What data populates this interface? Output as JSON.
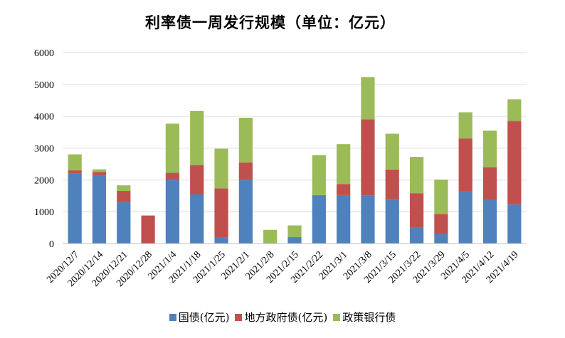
{
  "chart_data": {
    "type": "bar",
    "stacked": true,
    "title": "利率债一周发行规模（单位：亿元）",
    "xlabel": "",
    "ylabel": "",
    "ylim": [
      0,
      6000
    ],
    "yticks": [
      0,
      1000,
      2000,
      3000,
      4000,
      5000,
      6000
    ],
    "grid": true,
    "legend_position": "bottom",
    "categories": [
      "2020/12/7",
      "2020/12/14",
      "2020/12/21",
      "2020/12/28",
      "2021/1/4",
      "2021/1/18",
      "2021/1/25",
      "2021/2/1",
      "2021/2/8",
      "2021/2/15",
      "2021/2/22",
      "2021/3/1",
      "2021/3/8",
      "2021/3/15",
      "2021/3/22",
      "2021/3/29",
      "2021/4/5",
      "2021/4/12",
      "2021/4/19"
    ],
    "series": [
      {
        "name": "国债(亿元)",
        "color": "#4F81BD",
        "values": [
          2200,
          2150,
          1300,
          0,
          2000,
          1550,
          200,
          2000,
          0,
          200,
          1520,
          1520,
          1500,
          1390,
          500,
          300,
          1650,
          1370,
          1230
        ]
      },
      {
        "name": "地方政府债(亿元)",
        "color": "#C0504D",
        "values": [
          100,
          100,
          350,
          880,
          220,
          920,
          1530,
          550,
          0,
          0,
          0,
          350,
          2400,
          930,
          1080,
          630,
          1650,
          1030,
          2620
        ]
      },
      {
        "name": "政策银行债",
        "color": "#9BBB59",
        "values": [
          500,
          80,
          180,
          0,
          1550,
          1700,
          1250,
          1400,
          430,
          370,
          1260,
          1250,
          1330,
          1130,
          1140,
          1080,
          820,
          1150,
          680
        ]
      }
    ]
  }
}
